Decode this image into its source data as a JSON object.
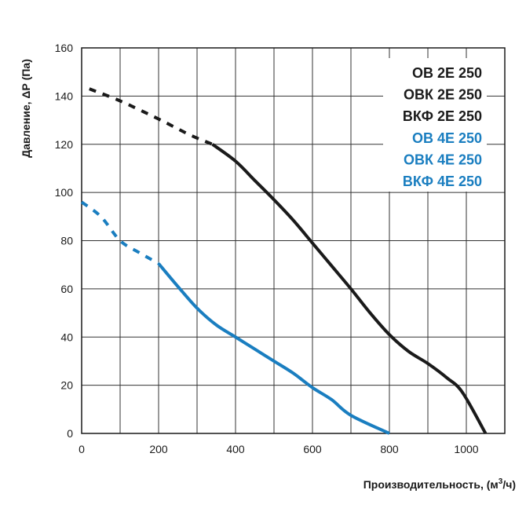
{
  "chart_data": {
    "type": "line",
    "title": "",
    "xlabel": "Производительность, (м³/ч)",
    "xlabel_parts": {
      "main": "Производительность, (м",
      "sup": "3",
      "tail": "/ч)"
    },
    "ylabel": "Давление, ΔР (Па)",
    "xlim": [
      0,
      1100
    ],
    "ylim": [
      0,
      160
    ],
    "xticks": [
      0,
      200,
      400,
      600,
      800,
      1000
    ],
    "yticks": [
      0,
      20,
      40,
      60,
      80,
      100,
      120,
      140,
      160
    ],
    "x_grid_step": 100,
    "y_grid_step": 20,
    "grid": true,
    "legend_position": "top-right",
    "legend": [
      {
        "label": "ОВ 2Е 250",
        "series": "2E",
        "color": "#1a1a1a"
      },
      {
        "label": "ОВК 2Е 250",
        "series": "2E",
        "color": "#1a1a1a"
      },
      {
        "label": "ВКФ 2Е 250",
        "series": "2E",
        "color": "#1a1a1a"
      },
      {
        "label": "ОВ 4Е 250",
        "series": "4E",
        "color": "#1a7ec0"
      },
      {
        "label": "ОВК 4Е 250",
        "series": "4E",
        "color": "#1a7ec0"
      },
      {
        "label": "ВКФ 4Е 250",
        "series": "4E",
        "color": "#1a7ec0"
      }
    ],
    "series": [
      {
        "name": "2E 250",
        "color": "#1a1a1a",
        "dashed": [
          [
            20,
            143
          ],
          [
            100,
            138
          ],
          [
            200,
            130.5
          ],
          [
            280,
            124
          ],
          [
            340,
            120
          ]
        ],
        "solid": [
          [
            340,
            120
          ],
          [
            400,
            113
          ],
          [
            450,
            105
          ],
          [
            500,
            97
          ],
          [
            550,
            88.5
          ],
          [
            600,
            79
          ],
          [
            650,
            69.5
          ],
          [
            700,
            60
          ],
          [
            750,
            50
          ],
          [
            800,
            41
          ],
          [
            850,
            34
          ],
          [
            900,
            29
          ],
          [
            950,
            23
          ],
          [
            990,
            17
          ],
          [
            1050,
            0
          ]
        ]
      },
      {
        "name": "4E 250",
        "color": "#1a7ec0",
        "dashed": [
          [
            0,
            96
          ],
          [
            50,
            90
          ],
          [
            100,
            80
          ],
          [
            150,
            75
          ],
          [
            200,
            70.5
          ]
        ],
        "solid": [
          [
            200,
            70.5
          ],
          [
            250,
            61
          ],
          [
            300,
            52
          ],
          [
            350,
            45
          ],
          [
            400,
            40
          ],
          [
            450,
            35
          ],
          [
            500,
            30
          ],
          [
            550,
            25
          ],
          [
            600,
            19
          ],
          [
            650,
            14
          ],
          [
            700,
            7.5
          ],
          [
            800,
            0
          ]
        ]
      }
    ]
  }
}
